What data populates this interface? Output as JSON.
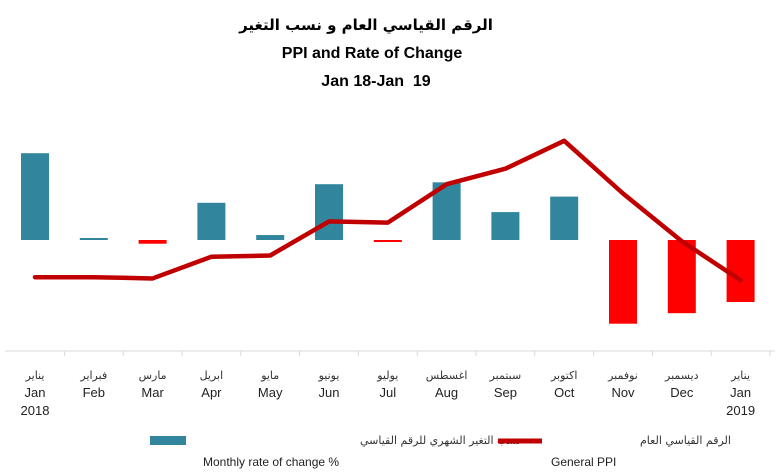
{
  "chart_data": {
    "type": "bar",
    "title_ar": "الرقم القياسي العام و نسب التغير",
    "title": "PPI and Rate of Change",
    "subtitle": "Jan 18-Jan  19",
    "categories_ar": [
      "يناير",
      "فبراير",
      "مارس",
      "ابريل",
      "مايو",
      "يونيو",
      "يوليو",
      "اغسطس",
      "سبتمبر",
      "اكتوبر",
      "نوفمبر",
      "ديسمبر",
      "يناير"
    ],
    "categories": [
      "Jan",
      "Feb",
      "Mar",
      "Apr",
      "May",
      "Jun",
      "Jul",
      "Aug",
      "Sep",
      "Oct",
      "Nov",
      "Dec",
      "Jan"
    ],
    "category_years": [
      "2018",
      "",
      "",
      "",
      "",
      "",
      "",
      "",
      "",
      "",
      "",
      "",
      "2019"
    ],
    "series": [
      {
        "name": "Monthly rate of change %",
        "name_ar": "نسب التغير الشهري للرقم القياسي",
        "type": "bar",
        "values": [
          1.4,
          0.02,
          -0.06,
          0.6,
          0.08,
          0.9,
          -0.02,
          0.93,
          0.45,
          0.7,
          -1.35,
          -1.18,
          -1.0
        ],
        "color_positive": "#31859C",
        "color_negative": "#FF0000"
      },
      {
        "name": "General PPI",
        "name_ar": "الرقم القياسي العام",
        "type": "line",
        "values": [
          -0.6,
          -0.6,
          -0.62,
          -0.27,
          -0.25,
          0.3,
          0.28,
          0.9,
          1.15,
          1.6,
          0.75,
          -0.02,
          -0.65
        ],
        "color": "#C00000"
      }
    ],
    "ylim": [
      -1.8,
      1.8
    ],
    "grid": false,
    "legend_position": "bottom"
  }
}
